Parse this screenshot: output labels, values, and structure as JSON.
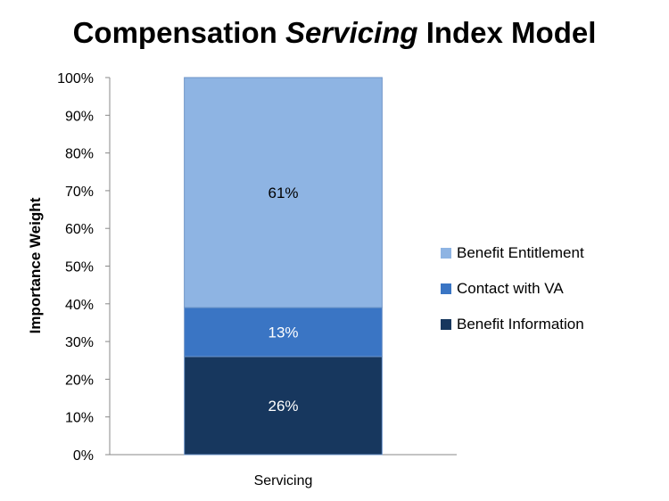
{
  "chart_data": {
    "type": "bar",
    "stacked": true,
    "title_parts": [
      "Compensation ",
      "Servicing",
      " Index Model"
    ],
    "ylabel": "Importance Weight",
    "xlabel": "",
    "categories": [
      "Servicing"
    ],
    "ylim": [
      0,
      100
    ],
    "yticks": [
      "0%",
      "10%",
      "20%",
      "30%",
      "40%",
      "50%",
      "60%",
      "70%",
      "80%",
      "90%",
      "100%"
    ],
    "series": [
      {
        "name": "Benefit Information",
        "values": [
          26
        ],
        "label": "26%",
        "color": "#17375e",
        "label_color": "#ffffff"
      },
      {
        "name": "Contact with VA",
        "values": [
          13
        ],
        "label": "13%",
        "color": "#3a75c4",
        "label_color": "#ffffff"
      },
      {
        "name": "Benefit Entitlement",
        "values": [
          61
        ],
        "label": "61%",
        "color": "#8eb4e3",
        "label_color": "#000000"
      }
    ],
    "legend": {
      "position": "right",
      "entries": [
        "Benefit Entitlement",
        "Contact with VA",
        "Benefit Information"
      ],
      "colors": [
        "#8eb4e3",
        "#3a75c4",
        "#17375e"
      ]
    },
    "grid": false
  }
}
